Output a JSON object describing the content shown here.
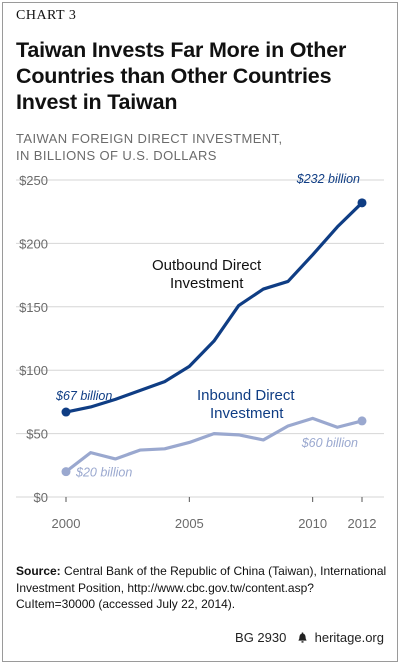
{
  "header": {
    "chart_label": "CHART 3",
    "title_lines": [
      "Taiwan Invests Far More in Other",
      "Countries than Other Countries",
      "Invest in Taiwan"
    ],
    "subtitle_lines": [
      "TAIWAN FOREIGN DIRECT INVESTMENT,",
      "IN BILLIONS OF U.S. DOLLARS"
    ]
  },
  "colors": {
    "outbound": "#0f3d84",
    "inbound": "#9aa8cf",
    "grid": "#d6d6d6",
    "axis_text": "#6b6b6b"
  },
  "chart_data": {
    "type": "line",
    "title": "Taiwan Invests Far More in Other Countries than Other Countries Invest in Taiwan",
    "ylabel": "TAIWAN FOREIGN DIRECT INVESTMENT, IN BILLIONS OF U.S. DOLLARS",
    "xlim": [
      2000,
      2012
    ],
    "ylim": [
      0,
      250
    ],
    "x_ticks": [
      2000,
      2005,
      2010,
      2012
    ],
    "x_tick_labels": [
      "2000",
      "2005",
      "2010",
      "2012"
    ],
    "y_ticks": [
      0,
      50,
      100,
      150,
      200,
      250
    ],
    "y_tick_labels": [
      "$0",
      "$50",
      "$100",
      "$150",
      "$200",
      "$250"
    ],
    "grid": true,
    "x": [
      2000,
      2001,
      2002,
      2003,
      2004,
      2005,
      2006,
      2007,
      2008,
      2009,
      2010,
      2011,
      2012
    ],
    "series": [
      {
        "name": "Outbound Direct Investment",
        "label_lines": [
          "Outbound Direct",
          "Investment"
        ],
        "values": [
          67,
          71,
          77,
          84,
          91,
          103,
          123,
          151,
          164,
          170,
          191,
          213,
          232
        ],
        "start_label": "$67 billion",
        "end_label": "$232 billion"
      },
      {
        "name": "Inbound Direct Investment",
        "label_lines": [
          "Inbound Direct",
          "Investment"
        ],
        "values": [
          20,
          35,
          30,
          37,
          38,
          43,
          50,
          49,
          45,
          56,
          62,
          55,
          60
        ],
        "start_label": "$20 billion",
        "end_label": "$60 billion"
      }
    ]
  },
  "source": {
    "prefix": "Source:",
    "text": " Central Bank of the Republic of China (Taiwan), International Investment Position, http://www.cbc.gov.tw/content.asp?CuItem=30000 (accessed July 22, 2014)."
  },
  "footer": {
    "code": "BG 2930",
    "site": "heritage.org",
    "logo_icon": "liberty-bell-icon"
  }
}
